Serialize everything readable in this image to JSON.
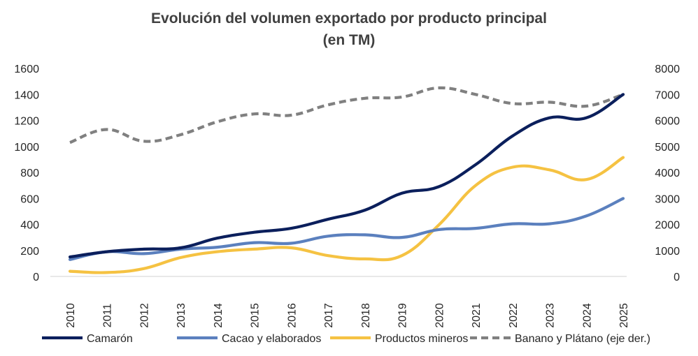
{
  "chart_data": {
    "type": "line",
    "title_line1": "Evolución del volumen exportado por producto principal",
    "title_line2": "(en TM)",
    "categories": [
      "2010",
      "2011",
      "2012",
      "2013",
      "2014",
      "2015",
      "2016",
      "2017",
      "2018",
      "2019",
      "2020",
      "2021",
      "2022",
      "2023",
      "2024",
      "2025"
    ],
    "y_left": {
      "min": 0,
      "max": 1600,
      "ticks": [
        0,
        200,
        400,
        600,
        800,
        1000,
        1200,
        1400,
        1600
      ]
    },
    "y_right": {
      "min": 0,
      "max": 8000,
      "ticks": [
        0,
        1000,
        2000,
        3000,
        4000,
        5000,
        6000,
        7000,
        8000
      ]
    },
    "grid": false,
    "legend_position": "bottom",
    "series": [
      {
        "name": "Camarón",
        "axis": "left",
        "style": "solid",
        "color": "#0b1f5c",
        "values": [
          150,
          190,
          210,
          220,
          295,
          340,
          370,
          440,
          510,
          640,
          690,
          860,
          1080,
          1220,
          1220,
          1400
        ]
      },
      {
        "name": "Cacao y elaborados",
        "axis": "left",
        "style": "solid",
        "color": "#5b80be",
        "values": [
          130,
          190,
          175,
          210,
          225,
          260,
          255,
          310,
          320,
          300,
          360,
          370,
          405,
          405,
          465,
          600
        ]
      },
      {
        "name": "Productos mineros",
        "axis": "left",
        "style": "solid",
        "color": "#f5c242",
        "values": [
          40,
          30,
          60,
          145,
          190,
          210,
          220,
          160,
          135,
          160,
          395,
          700,
          840,
          820,
          745,
          915
        ]
      },
      {
        "name": "Banano y Plátano (eje der.)",
        "axis": "right",
        "style": "dashed",
        "color": "#808080",
        "values": [
          5150,
          5650,
          5200,
          5450,
          5950,
          6250,
          6200,
          6600,
          6850,
          6900,
          7250,
          7000,
          6650,
          6700,
          6550,
          7000
        ]
      }
    ]
  }
}
